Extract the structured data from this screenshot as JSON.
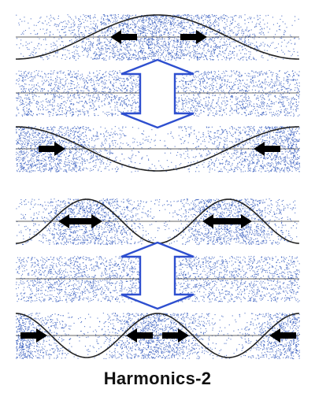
{
  "caption": "Harmonics-2",
  "colors": {
    "particles": "#3a5fc0",
    "double_arrow": "#2e4fcf",
    "arrows": "#000000",
    "curve": "#222222",
    "background": "#ffffff"
  },
  "groups": [
    {
      "name": "first-harmonic",
      "rows": [
        {
          "name": "compression-center",
          "wavelengths": 1,
          "phase": "peak-center",
          "arrows": [
            {
              "dir": "left"
            },
            {
              "dir": "right"
            }
          ]
        },
        {
          "name": "uniform",
          "wavelengths": 0,
          "phase": "flat",
          "arrows": []
        },
        {
          "name": "compression-ends",
          "wavelengths": 1,
          "phase": "trough-center",
          "arrows": [
            {
              "dir": "right"
            },
            {
              "dir": "left"
            }
          ]
        }
      ]
    },
    {
      "name": "second-harmonic",
      "rows": [
        {
          "name": "two-compressions",
          "wavelengths": 2,
          "phase": "peak-center",
          "arrows": [
            {
              "dir": "left"
            },
            {
              "dir": "right"
            },
            {
              "dir": "left"
            },
            {
              "dir": "right"
            }
          ]
        },
        {
          "name": "uniform",
          "wavelengths": 0,
          "phase": "flat",
          "arrows": []
        },
        {
          "name": "three-compressions",
          "wavelengths": 2,
          "phase": "trough-center",
          "arrows": [
            {
              "dir": "right"
            },
            {
              "dir": "left"
            },
            {
              "dir": "right"
            },
            {
              "dir": "left"
            }
          ]
        }
      ]
    }
  ]
}
